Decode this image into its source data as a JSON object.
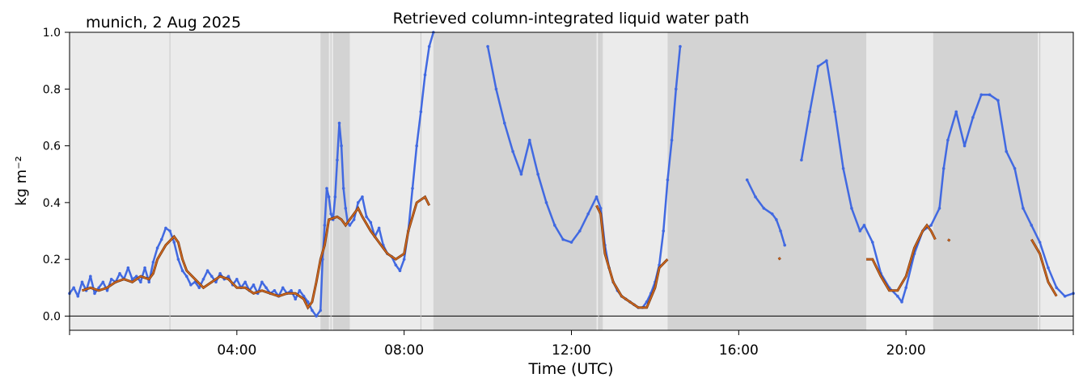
{
  "chart_data": {
    "type": "scatter",
    "title": "Retrieved column-integrated liquid water path",
    "subtitle": "munich, 2 Aug 2025",
    "xlabel": "Time (UTC)",
    "ylabel": "kg m⁻²",
    "xlim": [
      0,
      24
    ],
    "ylim": [
      -0.05,
      1.0
    ],
    "x_ticks": [
      {
        "value": 4,
        "label": "04:00"
      },
      {
        "value": 8,
        "label": "08:00"
      },
      {
        "value": 12,
        "label": "12:00"
      },
      {
        "value": 16,
        "label": "16:00"
      },
      {
        "value": 20,
        "label": "20:00"
      }
    ],
    "y_ticks": [
      {
        "value": 0.0,
        "label": "0.0"
      },
      {
        "value": 0.2,
        "label": "0.2"
      },
      {
        "value": 0.4,
        "label": "0.4"
      },
      {
        "value": 0.6,
        "label": "0.6"
      },
      {
        "value": 0.8,
        "label": "0.8"
      },
      {
        "value": 1.0,
        "label": "1.0"
      }
    ],
    "zero_line": 0.0,
    "background_color": "#ebebeb",
    "flag_band_color": "#d3d3d3",
    "flag_bands": [
      [
        6.0,
        6.2
      ],
      [
        6.3,
        6.7
      ],
      [
        8.7,
        12.6
      ],
      [
        12.65,
        12.75
      ],
      [
        14.3,
        19.05
      ],
      [
        20.65,
        23.15
      ]
    ],
    "series": [
      {
        "color": "#4169e1",
        "style": "points",
        "points": [
          [
            0.0,
            0.08
          ],
          [
            0.1,
            0.1
          ],
          [
            0.2,
            0.07
          ],
          [
            0.3,
            0.12
          ],
          [
            0.4,
            0.09
          ],
          [
            0.5,
            0.14
          ],
          [
            0.6,
            0.08
          ],
          [
            0.7,
            0.1
          ],
          [
            0.8,
            0.12
          ],
          [
            0.9,
            0.09
          ],
          [
            1.0,
            0.13
          ],
          [
            1.1,
            0.12
          ],
          [
            1.2,
            0.15
          ],
          [
            1.3,
            0.13
          ],
          [
            1.4,
            0.17
          ],
          [
            1.5,
            0.13
          ],
          [
            1.6,
            0.14
          ],
          [
            1.7,
            0.12
          ],
          [
            1.8,
            0.17
          ],
          [
            1.9,
            0.12
          ],
          [
            2.0,
            0.19
          ],
          [
            2.1,
            0.24
          ],
          [
            2.2,
            0.27
          ],
          [
            2.3,
            0.31
          ],
          [
            2.4,
            0.3
          ],
          [
            2.5,
            0.26
          ],
          [
            2.6,
            0.2
          ],
          [
            2.7,
            0.16
          ],
          [
            2.8,
            0.14
          ],
          [
            2.9,
            0.11
          ],
          [
            3.0,
            0.12
          ],
          [
            3.1,
            0.1
          ],
          [
            3.2,
            0.13
          ],
          [
            3.3,
            0.16
          ],
          [
            3.4,
            0.14
          ],
          [
            3.5,
            0.12
          ],
          [
            3.6,
            0.15
          ],
          [
            3.7,
            0.13
          ],
          [
            3.8,
            0.14
          ],
          [
            3.9,
            0.11
          ],
          [
            4.0,
            0.13
          ],
          [
            4.1,
            0.1
          ],
          [
            4.2,
            0.12
          ],
          [
            4.3,
            0.09
          ],
          [
            4.4,
            0.11
          ],
          [
            4.5,
            0.08
          ],
          [
            4.6,
            0.12
          ],
          [
            4.7,
            0.1
          ],
          [
            4.8,
            0.08
          ],
          [
            4.9,
            0.09
          ],
          [
            5.0,
            0.07
          ],
          [
            5.1,
            0.1
          ],
          [
            5.2,
            0.08
          ],
          [
            5.3,
            0.09
          ],
          [
            5.4,
            0.06
          ],
          [
            5.5,
            0.09
          ],
          [
            5.6,
            0.07
          ],
          [
            5.7,
            0.05
          ],
          [
            5.8,
            0.02
          ],
          [
            5.9,
            0.0
          ],
          [
            6.0,
            0.02
          ],
          [
            6.05,
            0.2
          ],
          [
            6.1,
            0.32
          ],
          [
            6.15,
            0.45
          ],
          [
            6.2,
            0.42
          ],
          [
            6.25,
            0.36
          ],
          [
            6.3,
            0.34
          ],
          [
            6.35,
            0.42
          ],
          [
            6.4,
            0.55
          ],
          [
            6.45,
            0.68
          ],
          [
            6.5,
            0.6
          ],
          [
            6.55,
            0.45
          ],
          [
            6.6,
            0.38
          ],
          [
            6.65,
            0.33
          ],
          [
            6.7,
            0.32
          ],
          [
            6.8,
            0.34
          ],
          [
            6.9,
            0.4
          ],
          [
            7.0,
            0.42
          ],
          [
            7.1,
            0.35
          ],
          [
            7.2,
            0.33
          ],
          [
            7.3,
            0.28
          ],
          [
            7.4,
            0.31
          ],
          [
            7.5,
            0.25
          ],
          [
            7.6,
            0.22
          ],
          [
            7.7,
            0.21
          ],
          [
            7.8,
            0.18
          ],
          [
            7.9,
            0.16
          ],
          [
            8.0,
            0.2
          ],
          [
            8.1,
            0.3
          ],
          [
            8.2,
            0.45
          ],
          [
            8.3,
            0.6
          ],
          [
            8.4,
            0.72
          ],
          [
            8.5,
            0.85
          ],
          [
            8.6,
            0.95
          ],
          [
            8.7,
            1.0
          ],
          [
            10.0,
            0.95
          ],
          [
            10.2,
            0.8
          ],
          [
            10.4,
            0.68
          ],
          [
            10.6,
            0.58
          ],
          [
            10.8,
            0.5
          ],
          [
            11.0,
            0.62
          ],
          [
            11.2,
            0.5
          ],
          [
            11.4,
            0.4
          ],
          [
            11.6,
            0.32
          ],
          [
            11.8,
            0.27
          ],
          [
            12.0,
            0.26
          ],
          [
            12.2,
            0.3
          ],
          [
            12.4,
            0.36
          ],
          [
            12.6,
            0.42
          ],
          [
            12.7,
            0.38
          ],
          [
            12.8,
            0.25
          ],
          [
            12.9,
            0.17
          ],
          [
            13.0,
            0.12
          ],
          [
            13.1,
            0.09
          ],
          [
            13.2,
            0.07
          ],
          [
            13.3,
            0.06
          ],
          [
            13.4,
            0.05
          ],
          [
            13.5,
            0.04
          ],
          [
            13.6,
            0.03
          ],
          [
            13.7,
            0.03
          ],
          [
            13.8,
            0.05
          ],
          [
            13.9,
            0.08
          ],
          [
            14.0,
            0.12
          ],
          [
            14.1,
            0.18
          ],
          [
            14.2,
            0.3
          ],
          [
            14.3,
            0.48
          ],
          [
            14.4,
            0.62
          ],
          [
            14.5,
            0.8
          ],
          [
            14.6,
            0.95
          ],
          [
            16.2,
            0.48
          ],
          [
            16.4,
            0.42
          ],
          [
            16.6,
            0.38
          ],
          [
            16.8,
            0.36
          ],
          [
            16.9,
            0.34
          ],
          [
            17.0,
            0.3
          ],
          [
            17.1,
            0.25
          ],
          [
            17.5,
            0.55
          ],
          [
            17.7,
            0.72
          ],
          [
            17.9,
            0.88
          ],
          [
            18.1,
            0.9
          ],
          [
            18.3,
            0.72
          ],
          [
            18.5,
            0.52
          ],
          [
            18.7,
            0.38
          ],
          [
            18.9,
            0.3
          ],
          [
            19.0,
            0.32
          ],
          [
            19.2,
            0.26
          ],
          [
            19.4,
            0.15
          ],
          [
            19.6,
            0.1
          ],
          [
            19.8,
            0.07
          ],
          [
            19.9,
            0.05
          ],
          [
            20.0,
            0.1
          ],
          [
            20.2,
            0.22
          ],
          [
            20.4,
            0.3
          ],
          [
            20.6,
            0.32
          ],
          [
            20.8,
            0.38
          ],
          [
            20.9,
            0.52
          ],
          [
            21.0,
            0.62
          ],
          [
            21.2,
            0.72
          ],
          [
            21.4,
            0.6
          ],
          [
            21.6,
            0.7
          ],
          [
            21.8,
            0.78
          ],
          [
            22.0,
            0.78
          ],
          [
            22.2,
            0.76
          ],
          [
            22.4,
            0.58
          ],
          [
            22.6,
            0.52
          ],
          [
            22.8,
            0.38
          ],
          [
            23.0,
            0.32
          ],
          [
            23.2,
            0.26
          ],
          [
            23.4,
            0.17
          ],
          [
            23.6,
            0.1
          ],
          [
            23.8,
            0.07
          ],
          [
            24.0,
            0.08
          ]
        ]
      },
      {
        "color": "#d2691e",
        "style": "line",
        "segments": [
          [
            [
              0.3,
              0.09
            ],
            [
              0.5,
              0.1
            ],
            [
              0.7,
              0.09
            ],
            [
              0.9,
              0.1
            ],
            [
              1.1,
              0.12
            ],
            [
              1.3,
              0.13
            ],
            [
              1.5,
              0.12
            ],
            [
              1.7,
              0.14
            ],
            [
              1.9,
              0.13
            ],
            [
              2.0,
              0.15
            ],
            [
              2.1,
              0.2
            ],
            [
              2.3,
              0.25
            ],
            [
              2.5,
              0.28
            ],
            [
              2.6,
              0.26
            ],
            [
              2.7,
              0.2
            ],
            [
              2.8,
              0.16
            ],
            [
              3.0,
              0.13
            ],
            [
              3.2,
              0.1
            ],
            [
              3.4,
              0.12
            ],
            [
              3.6,
              0.14
            ],
            [
              3.8,
              0.13
            ],
            [
              4.0,
              0.1
            ],
            [
              4.2,
              0.1
            ],
            [
              4.4,
              0.08
            ],
            [
              4.6,
              0.09
            ],
            [
              4.8,
              0.08
            ],
            [
              5.0,
              0.07
            ],
            [
              5.2,
              0.08
            ],
            [
              5.4,
              0.08
            ],
            [
              5.6,
              0.06
            ],
            [
              5.7,
              0.03
            ],
            [
              5.8,
              0.05
            ],
            [
              5.9,
              0.12
            ],
            [
              6.0,
              0.2
            ],
            [
              6.1,
              0.25
            ],
            [
              6.2,
              0.34
            ],
            [
              6.4,
              0.35
            ],
            [
              6.5,
              0.34
            ],
            [
              6.6,
              0.32
            ],
            [
              6.8,
              0.36
            ],
            [
              6.9,
              0.38
            ],
            [
              7.0,
              0.35
            ],
            [
              7.2,
              0.3
            ],
            [
              7.4,
              0.26
            ],
            [
              7.6,
              0.22
            ],
            [
              7.8,
              0.2
            ],
            [
              8.0,
              0.22
            ],
            [
              8.1,
              0.3
            ],
            [
              8.3,
              0.4
            ],
            [
              8.5,
              0.42
            ],
            [
              8.6,
              0.39
            ]
          ],
          [
            [
              12.6,
              0.39
            ],
            [
              12.7,
              0.36
            ],
            [
              12.8,
              0.22
            ],
            [
              13.0,
              0.12
            ],
            [
              13.2,
              0.07
            ],
            [
              13.4,
              0.05
            ],
            [
              13.6,
              0.03
            ],
            [
              13.8,
              0.03
            ],
            [
              14.0,
              0.1
            ],
            [
              14.1,
              0.17
            ],
            [
              14.3,
              0.2
            ]
          ],
          [
            [
              16.95,
              0.2
            ],
            [
              17.0,
              0.205
            ]
          ],
          [
            [
              19.05,
              0.2
            ],
            [
              19.2,
              0.2
            ],
            [
              19.4,
              0.14
            ],
            [
              19.6,
              0.09
            ],
            [
              19.8,
              0.09
            ],
            [
              20.0,
              0.14
            ],
            [
              20.2,
              0.24
            ],
            [
              20.4,
              0.3
            ],
            [
              20.5,
              0.32
            ],
            [
              20.6,
              0.3
            ],
            [
              20.7,
              0.27
            ]
          ],
          [
            [
              21.0,
              0.27
            ],
            [
              21.05,
              0.265
            ]
          ],
          [
            [
              23.0,
              0.27
            ],
            [
              23.2,
              0.22
            ],
            [
              23.4,
              0.12
            ],
            [
              23.6,
              0.07
            ]
          ]
        ]
      }
    ],
    "flag_markers": [
      2.4,
      6.25,
      8.4,
      12.65,
      23.2
    ]
  }
}
